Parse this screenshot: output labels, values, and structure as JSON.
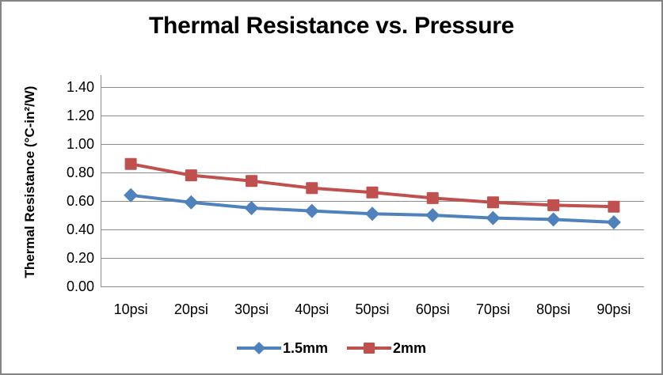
{
  "chart": {
    "title": "Thermal Resistance vs. Pressure",
    "y_axis_title": "Thermal Resistance (°C-in²/W)"
  },
  "chart_data": {
    "type": "line",
    "title": "Thermal Resistance vs. Pressure",
    "xlabel": "",
    "ylabel": "Thermal Resistance (°C-in²/W)",
    "categories": [
      "10psi",
      "20psi",
      "30psi",
      "40psi",
      "50psi",
      "60psi",
      "70psi",
      "80psi",
      "90psi"
    ],
    "series": [
      {
        "name": "1.5mm",
        "marker": "diamond",
        "color": "#4F81BD",
        "values": [
          0.64,
          0.59,
          0.55,
          0.53,
          0.51,
          0.5,
          0.48,
          0.47,
          0.45
        ]
      },
      {
        "name": "2mm",
        "marker": "square",
        "color": "#C0504D",
        "values": [
          0.86,
          0.78,
          0.74,
          0.69,
          0.66,
          0.62,
          0.59,
          0.57,
          0.56
        ]
      }
    ],
    "ylim": [
      0,
      1.45
    ],
    "y_ticks": [
      0,
      0.2,
      0.4,
      0.6,
      0.8,
      1.0,
      1.2,
      1.4
    ],
    "y_tick_labels": [
      "0.00",
      "0.20",
      "0.40",
      "0.60",
      "0.80",
      "1.00",
      "1.20",
      "1.40"
    ],
    "grid": true,
    "legend_position": "bottom",
    "colors": {
      "grid": "#8C8C8C",
      "axis": "#8C8C8C",
      "frame_border": "#848484",
      "text": "#000000"
    }
  }
}
